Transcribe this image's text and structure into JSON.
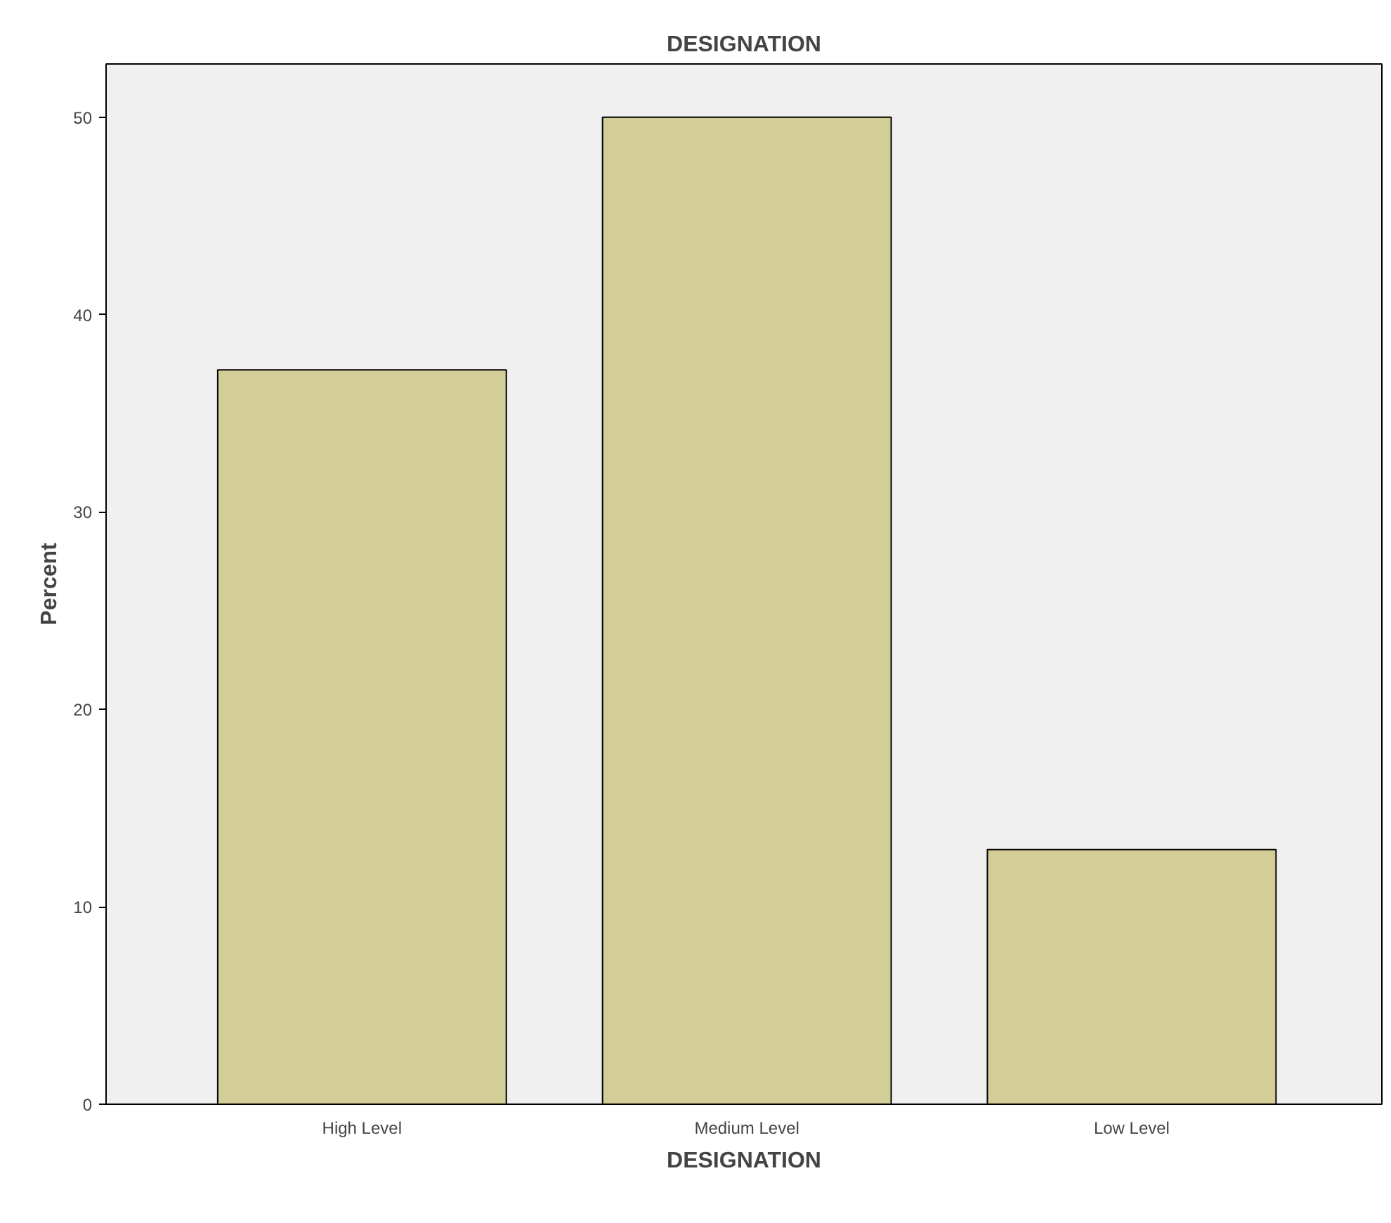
{
  "chart_data": {
    "type": "bar",
    "title": "DESIGNATION",
    "xlabel": "DESIGNATION",
    "ylabel": "Percent",
    "categories": [
      "High Level",
      "Medium Level",
      "Low Level"
    ],
    "values": [
      37.2,
      50.0,
      12.9
    ],
    "color": "#d3ce97",
    "ylim": [
      0,
      52.7
    ],
    "yticks": [
      0,
      10,
      20,
      30,
      40,
      50
    ],
    "grid": false
  }
}
